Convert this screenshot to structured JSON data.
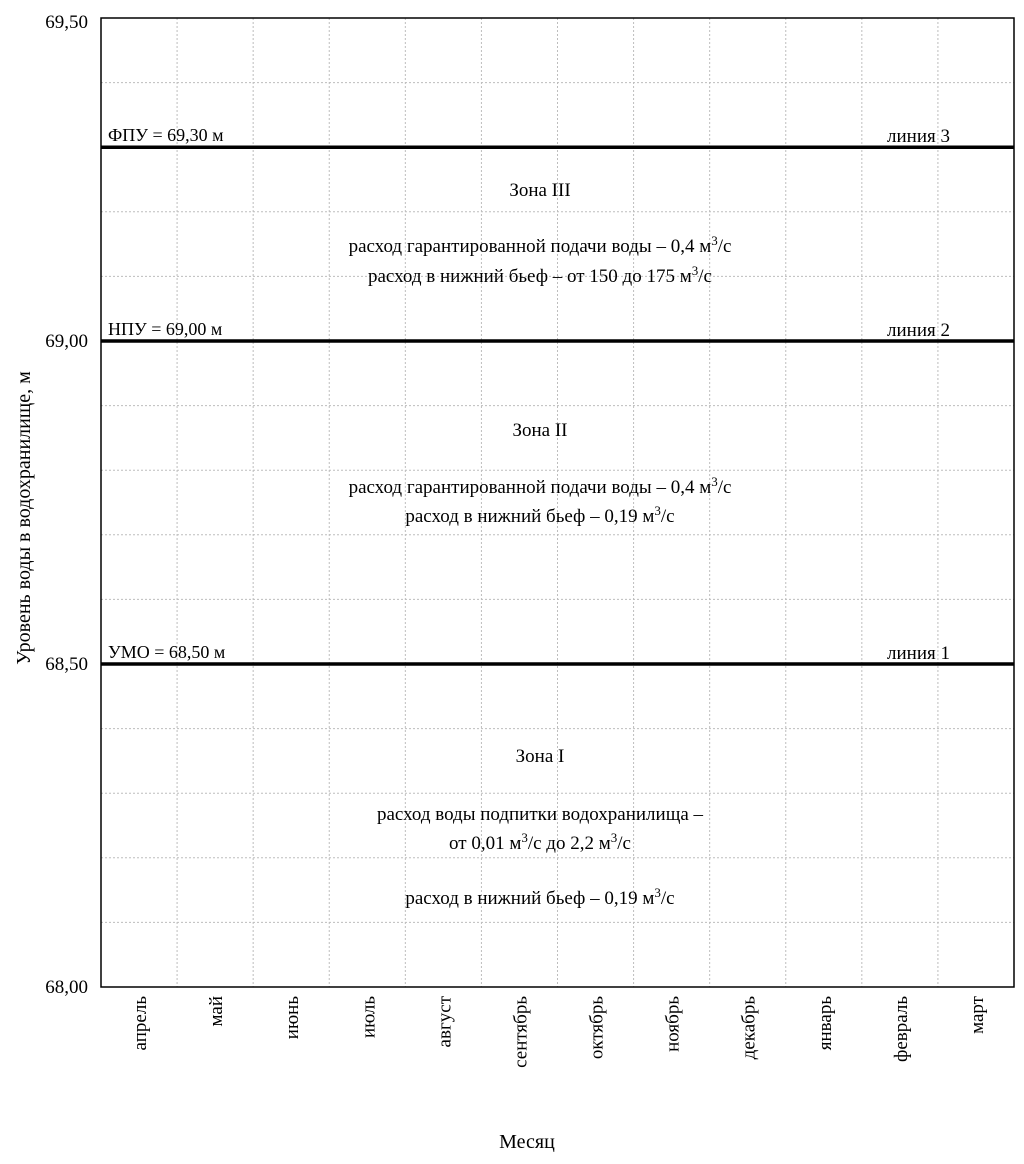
{
  "chart_data": {
    "type": "line",
    "xlabel": "Месяц",
    "ylabel": "Уровень воды в водохранилище, м",
    "categories": [
      "апрель",
      "май",
      "июнь",
      "июль",
      "август",
      "сентябрь",
      "октябрь",
      "ноябрь",
      "декабрь",
      "январь",
      "февраль",
      "март"
    ],
    "ylim": [
      68.0,
      69.5
    ],
    "y_ticks": [
      {
        "value": 68.0,
        "label": "68,00"
      },
      {
        "value": 68.5,
        "label": "68,50"
      },
      {
        "value": 69.0,
        "label": "69,00"
      },
      {
        "value": 69.5,
        "label": "69,50"
      }
    ],
    "grid": "dotted",
    "series": [
      {
        "name": "линия 1",
        "level": 68.5,
        "label": "УМО = 68,50 м",
        "values": [
          68.5,
          68.5,
          68.5,
          68.5,
          68.5,
          68.5,
          68.5,
          68.5,
          68.5,
          68.5,
          68.5,
          68.5
        ]
      },
      {
        "name": "линия 2",
        "level": 69.0,
        "label": "НПУ = 69,00 м",
        "values": [
          69.0,
          69.0,
          69.0,
          69.0,
          69.0,
          69.0,
          69.0,
          69.0,
          69.0,
          69.0,
          69.0,
          69.0
        ]
      },
      {
        "name": "линия 3",
        "level": 69.3,
        "label": "ФПУ = 69,30 м",
        "values": [
          69.3,
          69.3,
          69.3,
          69.3,
          69.3,
          69.3,
          69.3,
          69.3,
          69.3,
          69.3,
          69.3,
          69.3
        ]
      }
    ],
    "zones": [
      {
        "title": "Зона III",
        "lines": [
          {
            "pre": "расход гарантированной подачи воды – 0,4 м",
            "sup": "3",
            "post": "/с"
          },
          {
            "pre": "расход в нижний бьеф – от 150 до 175 м",
            "sup": "3",
            "post": "/с"
          }
        ]
      },
      {
        "title": "Зона II",
        "lines": [
          {
            "pre": "расход гарантированной подачи воды – 0,4 м",
            "sup": "3",
            "post": "/с"
          },
          {
            "pre": "расход в нижний бьеф – 0,19 м",
            "sup": "3",
            "post": "/с"
          }
        ]
      },
      {
        "title": "Зона I",
        "lines": [
          {
            "pre": "расход воды подпитки водохранилища –",
            "sup": "",
            "post": ""
          },
          {
            "pre": "от 0,01 м",
            "sup": "3",
            "post": "/с до 2,2 м",
            "sup2": "3",
            "post2": "/с"
          },
          {
            "pre": "расход в нижний бьеф – 0,19 м",
            "sup": "3",
            "post": "/с"
          }
        ]
      }
    ]
  }
}
